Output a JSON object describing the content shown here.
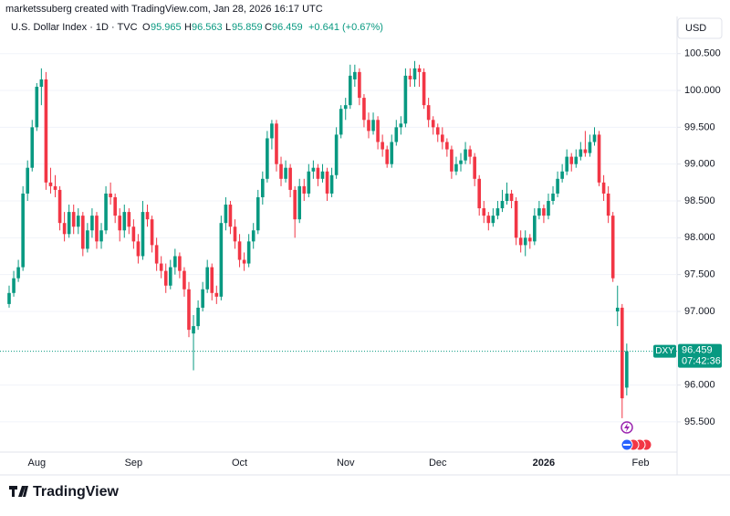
{
  "chart_data": {
    "type": "candlestick",
    "attribution": "marketssuberg created with TradingView.com, Jan 28, 2026 16:17 UTC",
    "title": "U.S. Dollar Index · 1D · TVC",
    "legend_keys": [
      "O",
      "H",
      "L",
      "C"
    ],
    "change": "+0.641 (+0.67%)",
    "currency": "USD",
    "symbol": "DXY",
    "countdown": "07:42:36",
    "logo": "TradingView",
    "up_color": "#089981",
    "down_color": "#f23645",
    "ylim": [
      95.09,
      100.67
    ],
    "yticks": [
      {
        "value": 95.5,
        "label": "95.500"
      },
      {
        "value": 96,
        "label": "96.000"
      },
      {
        "value": 97,
        "label": "97.000"
      },
      {
        "value": 97.5,
        "label": "97.500"
      },
      {
        "value": 98,
        "label": "98.000"
      },
      {
        "value": 98.5,
        "label": "98.500"
      },
      {
        "value": 99,
        "label": "99.000"
      },
      {
        "value": 99.5,
        "label": "99.500"
      },
      {
        "value": 100,
        "label": "100.000"
      },
      {
        "value": 100.5,
        "label": "100.500"
      }
    ],
    "grid": true,
    "categories": [
      null,
      null,
      null,
      null,
      null,
      null,
      "Aug",
      null,
      null,
      null,
      null,
      null,
      null,
      null,
      null,
      null,
      null,
      null,
      null,
      null,
      null,
      null,
      null,
      null,
      null,
      null,
      null,
      "Sep",
      null,
      null,
      null,
      null,
      null,
      null,
      null,
      null,
      null,
      null,
      null,
      null,
      null,
      null,
      null,
      null,
      null,
      null,
      null,
      null,
      null,
      null,
      "Oct",
      null,
      null,
      null,
      null,
      null,
      null,
      null,
      null,
      null,
      null,
      null,
      null,
      null,
      null,
      null,
      null,
      null,
      null,
      null,
      null,
      null,
      null,
      "Nov",
      null,
      null,
      null,
      null,
      null,
      null,
      null,
      null,
      null,
      null,
      null,
      null,
      null,
      null,
      null,
      null,
      null,
      null,
      null,
      "Dec",
      null,
      null,
      null,
      null,
      null,
      null,
      null,
      null,
      null,
      null,
      null,
      null,
      null,
      null,
      null,
      null,
      null,
      null,
      null,
      null,
      null,
      null,
      "2026",
      null,
      null,
      null,
      null,
      null,
      null,
      null,
      null,
      null,
      null,
      null,
      null,
      null,
      null,
      null,
      null,
      null,
      null,
      null,
      null,
      "Feb"
    ],
    "ohlc": [
      [
        97.1,
        97.35,
        97.05,
        97.25
      ],
      [
        97.25,
        97.55,
        97.2,
        97.45
      ],
      [
        97.45,
        97.7,
        97.4,
        97.6
      ],
      [
        97.6,
        98.7,
        97.55,
        98.6
      ],
      [
        98.6,
        99.05,
        98.5,
        98.95
      ],
      [
        98.95,
        99.6,
        98.9,
        99.5
      ],
      [
        99.5,
        100.1,
        99.45,
        100.05
      ],
      [
        100.05,
        100.3,
        99.8,
        100.15
      ],
      [
        100.15,
        100.25,
        98.65,
        98.75
      ],
      [
        98.75,
        98.95,
        98.6,
        98.7
      ],
      [
        98.7,
        98.85,
        98.55,
        98.65
      ],
      [
        98.65,
        98.7,
        98.1,
        98.2
      ],
      [
        98.2,
        98.35,
        97.95,
        98.05
      ],
      [
        98.05,
        98.45,
        98.0,
        98.35
      ],
      [
        98.35,
        98.45,
        98.05,
        98.15
      ],
      [
        98.15,
        98.4,
        98.05,
        98.3
      ],
      [
        98.3,
        98.35,
        97.75,
        97.85
      ],
      [
        97.85,
        98.2,
        97.8,
        98.1
      ],
      [
        98.1,
        98.4,
        98.0,
        98.3
      ],
      [
        98.3,
        98.35,
        97.85,
        97.95
      ],
      [
        97.95,
        98.2,
        97.85,
        98.1
      ],
      [
        98.1,
        98.7,
        98.05,
        98.6
      ],
      [
        98.6,
        98.75,
        98.45,
        98.55
      ],
      [
        98.55,
        98.6,
        98.2,
        98.3
      ],
      [
        98.3,
        98.4,
        97.95,
        98.1
      ],
      [
        98.1,
        98.45,
        98.0,
        98.35
      ],
      [
        98.35,
        98.4,
        98.05,
        98.15
      ],
      [
        98.15,
        98.25,
        97.85,
        97.95
      ],
      [
        97.95,
        98.05,
        97.65,
        97.75
      ],
      [
        97.75,
        98.5,
        97.7,
        98.35
      ],
      [
        98.35,
        98.45,
        98.15,
        98.25
      ],
      [
        98.25,
        98.3,
        97.8,
        97.9
      ],
      [
        97.9,
        98.0,
        97.55,
        97.65
      ],
      [
        97.65,
        97.75,
        97.45,
        97.55
      ],
      [
        97.55,
        97.65,
        97.25,
        97.35
      ],
      [
        97.35,
        97.7,
        97.3,
        97.6
      ],
      [
        97.6,
        97.85,
        97.5,
        97.75
      ],
      [
        97.75,
        97.8,
        97.45,
        97.55
      ],
      [
        97.55,
        97.6,
        97.2,
        97.3
      ],
      [
        97.3,
        97.4,
        96.65,
        96.75
      ],
      [
        96.7,
        96.95,
        96.2,
        96.8
      ],
      [
        96.8,
        97.15,
        96.75,
        97.05
      ],
      [
        97.05,
        97.4,
        97.0,
        97.3
      ],
      [
        97.3,
        97.7,
        97.25,
        97.6
      ],
      [
        97.6,
        97.65,
        97.15,
        97.25
      ],
      [
        97.25,
        97.35,
        97.1,
        97.2
      ],
      [
        97.2,
        98.3,
        97.15,
        98.2
      ],
      [
        98.2,
        98.55,
        98.1,
        98.45
      ],
      [
        98.45,
        98.5,
        98.05,
        98.15
      ],
      [
        98.15,
        98.25,
        97.85,
        97.95
      ],
      [
        97.95,
        98.05,
        97.6,
        97.7
      ],
      [
        97.7,
        97.8,
        97.55,
        97.65
      ],
      [
        97.65,
        98.05,
        97.6,
        97.95
      ],
      [
        97.95,
        98.2,
        97.85,
        98.1
      ],
      [
        98.1,
        98.65,
        98.05,
        98.55
      ],
      [
        98.55,
        98.9,
        98.45,
        98.8
      ],
      [
        98.8,
        99.45,
        98.75,
        99.35
      ],
      [
        99.35,
        99.6,
        99.2,
        99.55
      ],
      [
        99.55,
        99.6,
        98.9,
        99.0
      ],
      [
        99.0,
        99.1,
        98.7,
        98.8
      ],
      [
        98.8,
        99.05,
        98.75,
        98.95
      ],
      [
        98.95,
        99.0,
        98.55,
        98.65
      ],
      [
        98.65,
        98.7,
        98.0,
        98.25
      ],
      [
        98.25,
        98.8,
        98.2,
        98.7
      ],
      [
        98.7,
        98.8,
        98.5,
        98.6
      ],
      [
        98.6,
        99.0,
        98.55,
        98.9
      ],
      [
        98.9,
        99.05,
        98.8,
        98.95
      ],
      [
        98.95,
        99.0,
        98.7,
        98.8
      ],
      [
        98.8,
        99.0,
        98.75,
        98.9
      ],
      [
        98.9,
        98.95,
        98.5,
        98.6
      ],
      [
        98.6,
        98.95,
        98.55,
        98.85
      ],
      [
        98.85,
        99.5,
        98.8,
        99.4
      ],
      [
        99.4,
        99.8,
        99.35,
        99.75
      ],
      [
        99.75,
        99.9,
        99.6,
        99.8
      ],
      [
        99.8,
        100.35,
        99.75,
        100.2
      ],
      [
        100.15,
        100.35,
        100.05,
        100.25
      ],
      [
        100.25,
        100.3,
        99.8,
        99.9
      ],
      [
        99.9,
        99.95,
        99.5,
        99.6
      ],
      [
        99.6,
        99.7,
        99.35,
        99.45
      ],
      [
        99.45,
        99.7,
        99.4,
        99.6
      ],
      [
        99.6,
        99.65,
        99.2,
        99.3
      ],
      [
        99.3,
        99.4,
        99.1,
        99.2
      ],
      [
        99.2,
        99.25,
        98.95,
        99.0
      ],
      [
        99.0,
        99.4,
        98.95,
        99.3
      ],
      [
        99.3,
        99.6,
        99.25,
        99.5
      ],
      [
        99.5,
        99.65,
        99.4,
        99.55
      ],
      [
        99.55,
        100.3,
        99.5,
        100.2
      ],
      [
        100.2,
        100.3,
        100.05,
        100.15
      ],
      [
        100.15,
        100.4,
        100.05,
        100.3
      ],
      [
        100.3,
        100.35,
        100.05,
        100.25
      ],
      [
        100.25,
        100.3,
        99.75,
        99.8
      ],
      [
        99.8,
        99.9,
        99.5,
        99.6
      ],
      [
        99.6,
        99.65,
        99.4,
        99.5
      ],
      [
        99.5,
        99.55,
        99.3,
        99.4
      ],
      [
        99.4,
        99.5,
        99.2,
        99.3
      ],
      [
        99.3,
        99.35,
        99.1,
        99.2
      ],
      [
        99.2,
        99.25,
        98.8,
        98.9
      ],
      [
        98.9,
        99.1,
        98.85,
        99.0
      ],
      [
        99.0,
        99.15,
        98.9,
        99.05
      ],
      [
        99.05,
        99.3,
        99.0,
        99.2
      ],
      [
        99.2,
        99.25,
        99.0,
        99.1
      ],
      [
        99.1,
        99.15,
        98.7,
        98.8
      ],
      [
        98.8,
        98.85,
        98.3,
        98.4
      ],
      [
        98.4,
        98.5,
        98.2,
        98.3
      ],
      [
        98.3,
        98.35,
        98.1,
        98.2
      ],
      [
        98.2,
        98.4,
        98.15,
        98.3
      ],
      [
        98.3,
        98.5,
        98.25,
        98.4
      ],
      [
        98.4,
        98.65,
        98.35,
        98.5
      ],
      [
        98.5,
        98.75,
        98.45,
        98.6
      ],
      [
        98.6,
        98.65,
        98.4,
        98.5
      ],
      [
        98.5,
        98.55,
        97.9,
        98.0
      ],
      [
        98.0,
        98.1,
        97.8,
        97.9
      ],
      [
        97.9,
        98.1,
        97.75,
        98.0
      ],
      [
        98.0,
        98.05,
        97.85,
        97.95
      ],
      [
        97.95,
        98.4,
        97.9,
        98.3
      ],
      [
        98.3,
        98.5,
        98.25,
        98.4
      ],
      [
        98.4,
        98.45,
        98.2,
        98.3
      ],
      [
        98.3,
        98.6,
        98.25,
        98.5
      ],
      [
        98.5,
        98.7,
        98.45,
        98.6
      ],
      [
        98.6,
        98.9,
        98.55,
        98.8
      ],
      [
        98.8,
        99.0,
        98.75,
        98.9
      ],
      [
        98.9,
        99.2,
        98.85,
        99.1
      ],
      [
        99.1,
        99.15,
        98.9,
        99.0
      ],
      [
        99.0,
        99.2,
        98.95,
        99.1
      ],
      [
        99.1,
        99.3,
        99.05,
        99.2
      ],
      [
        99.2,
        99.45,
        99.1,
        99.15
      ],
      [
        99.15,
        99.4,
        99.1,
        99.3
      ],
      [
        99.3,
        99.5,
        99.25,
        99.4
      ],
      [
        99.4,
        99.45,
        98.7,
        98.75
      ],
      [
        98.75,
        98.85,
        98.5,
        98.6
      ],
      [
        98.6,
        98.7,
        98.2,
        98.3
      ],
      [
        98.3,
        98.35,
        97.4,
        97.45
      ],
      [
        97.0,
        97.35,
        96.8,
        97.05
      ],
      [
        97.05,
        97.1,
        95.55,
        95.82
      ],
      [
        95.965,
        96.563,
        95.859,
        96.459
      ],
      null,
      null,
      null
    ]
  }
}
